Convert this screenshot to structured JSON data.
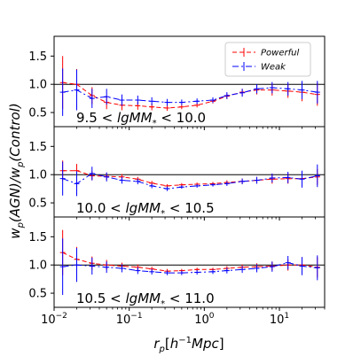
{
  "chart_data": {
    "type": "line",
    "xlabel": "r_p[h^{-1}Mpc]",
    "ylabel": "w_p(AGN)/w_p(Control)",
    "xscale": "log",
    "xlim": [
      0.01,
      40
    ],
    "xticks": [
      {
        "value": 0.01,
        "mantissa": "10",
        "exp": "−2"
      },
      {
        "value": 0.1,
        "mantissa": "10",
        "exp": "−1"
      },
      {
        "value": 1,
        "mantissa": "10",
        "exp": "0"
      },
      {
        "value": 10,
        "mantissa": "10",
        "exp": "1"
      }
    ],
    "yticks": [
      "0.5",
      "1.0",
      "1.5"
    ],
    "reference_line": 1.0,
    "legend": {
      "placement": "top-right",
      "entries": [
        "Powerful",
        "Weak"
      ]
    },
    "series_styles": [
      {
        "name": "Powerful",
        "color": "#ff0000",
        "dash": "5,3"
      },
      {
        "name": "Weak",
        "color": "#0000ff",
        "dash": "7,3,2,3"
      }
    ],
    "x": [
      0.013,
      0.02,
      0.032,
      0.05,
      0.08,
      0.13,
      0.2,
      0.32,
      0.5,
      0.8,
      1.3,
      2.0,
      3.2,
      5.0,
      8.0,
      13,
      20,
      32
    ],
    "panels": [
      {
        "label_prefix": "9.5 < ",
        "label_var": "lgM",
        "label_sub": "*",
        "label_suffix": " < 10.0",
        "ylim": [
          0.25,
          1.85
        ],
        "series": [
          {
            "name": "Powerful",
            "values": [
              1.03,
              1.0,
              0.8,
              0.68,
              0.63,
              0.62,
              0.6,
              0.58,
              0.6,
              0.63,
              0.7,
              0.79,
              0.86,
              0.9,
              0.9,
              0.88,
              0.86,
              0.82
            ],
            "errors": [
              0.47,
              0.27,
              0.15,
              0.12,
              0.09,
              0.07,
              0.06,
              0.05,
              0.04,
              0.04,
              0.04,
              0.05,
              0.06,
              0.08,
              0.1,
              0.12,
              0.16,
              0.2
            ]
          },
          {
            "name": "Weak",
            "values": [
              0.86,
              0.9,
              0.75,
              0.78,
              0.72,
              0.72,
              0.7,
              0.68,
              0.68,
              0.7,
              0.72,
              0.8,
              0.85,
              0.92,
              0.94,
              0.92,
              0.9,
              0.86
            ],
            "errors": [
              0.42,
              0.36,
              0.17,
              0.14,
              0.1,
              0.08,
              0.07,
              0.06,
              0.05,
              0.05,
              0.05,
              0.06,
              0.07,
              0.08,
              0.1,
              0.12,
              0.16,
              0.2
            ]
          }
        ]
      },
      {
        "label_prefix": "10.0 < ",
        "label_var": "lgM",
        "label_sub": "*",
        "label_suffix": " < 10.5",
        "ylim": [
          0.25,
          1.85
        ],
        "series": [
          {
            "name": "Powerful",
            "values": [
              1.07,
              1.07,
              0.98,
              0.97,
              0.96,
              0.92,
              0.85,
              0.8,
              0.82,
              0.83,
              0.84,
              0.86,
              0.88,
              0.9,
              0.92,
              0.93,
              0.93,
              0.96
            ],
            "errors": [
              0.18,
              0.12,
              0.08,
              0.06,
              0.05,
              0.04,
              0.04,
              0.03,
              0.03,
              0.03,
              0.03,
              0.04,
              0.05,
              0.06,
              0.08,
              0.09,
              0.12,
              0.14
            ]
          },
          {
            "name": "Weak",
            "values": [
              0.93,
              0.84,
              1.02,
              0.96,
              0.9,
              0.88,
              0.8,
              0.75,
              0.78,
              0.8,
              0.82,
              0.84,
              0.88,
              0.9,
              0.94,
              0.95,
              0.92,
              0.98
            ],
            "errors": [
              0.3,
              0.22,
              0.12,
              0.08,
              0.06,
              0.05,
              0.04,
              0.04,
              0.03,
              0.03,
              0.03,
              0.04,
              0.05,
              0.06,
              0.08,
              0.1,
              0.15,
              0.2
            ]
          }
        ]
      },
      {
        "label_prefix": "10.5 < ",
        "label_var": "lgM",
        "label_sub": "*",
        "label_suffix": " < 11.0",
        "ylim": [
          0.25,
          1.85
        ],
        "series": [
          {
            "name": "Powerful",
            "values": [
              1.22,
              1.1,
              1.03,
              1.0,
              0.98,
              0.96,
              0.93,
              0.89,
              0.9,
              0.92,
              0.92,
              0.94,
              0.96,
              0.97,
              0.98,
              1.0,
              1.0,
              0.96
            ],
            "errors": [
              0.4,
              0.22,
              0.12,
              0.09,
              0.06,
              0.05,
              0.04,
              0.04,
              0.03,
              0.03,
              0.03,
              0.04,
              0.05,
              0.06,
              0.08,
              0.1,
              0.14,
              0.18
            ]
          },
          {
            "name": "Weak",
            "values": [
              0.97,
              1.0,
              0.98,
              0.96,
              0.94,
              0.9,
              0.88,
              0.86,
              0.86,
              0.87,
              0.88,
              0.9,
              0.92,
              0.94,
              0.97,
              1.04,
              0.98,
              0.95
            ],
            "errors": [
              0.5,
              0.3,
              0.15,
              0.1,
              0.07,
              0.06,
              0.05,
              0.04,
              0.04,
              0.04,
              0.04,
              0.05,
              0.06,
              0.07,
              0.09,
              0.12,
              0.16,
              0.22
            ]
          }
        ]
      }
    ]
  }
}
